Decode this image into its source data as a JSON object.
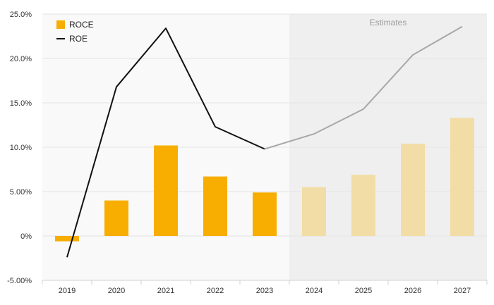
{
  "chart_data": {
    "type": "bar",
    "categories": [
      "2019",
      "2020",
      "2021",
      "2022",
      "2023",
      "2024",
      "2025",
      "2026",
      "2027"
    ],
    "series": [
      {
        "name": "ROCE",
        "kind": "bar",
        "values": [
          -0.6,
          4.0,
          10.2,
          6.7,
          4.9,
          5.5,
          6.9,
          10.4,
          13.3
        ],
        "color": "#f7ae00",
        "estimate_color": "#f2dda6"
      },
      {
        "name": "ROE",
        "kind": "line",
        "values": [
          -2.4,
          16.8,
          23.4,
          12.3,
          9.8,
          11.5,
          14.3,
          20.4,
          23.6
        ],
        "color": "#111111",
        "estimate_color": "#a8a8a8"
      }
    ],
    "estimates_start": "2024",
    "estimates_label": "Estimates",
    "ylim": [
      -5,
      25
    ],
    "yticks": [
      "25.0%",
      "20.0%",
      "15.0%",
      "10.0%",
      "5.00%",
      "0%",
      "-5.00%"
    ],
    "ytick_values": [
      25,
      20,
      15,
      10,
      5,
      0,
      -5
    ],
    "title": "",
    "xlabel": "",
    "ylabel": "",
    "legend_position": "top-left",
    "grid": true,
    "colors": {
      "plot_bg": "#f9f9f9",
      "estimate_bg": "#efefef",
      "grid": "#e4e4e4"
    }
  }
}
